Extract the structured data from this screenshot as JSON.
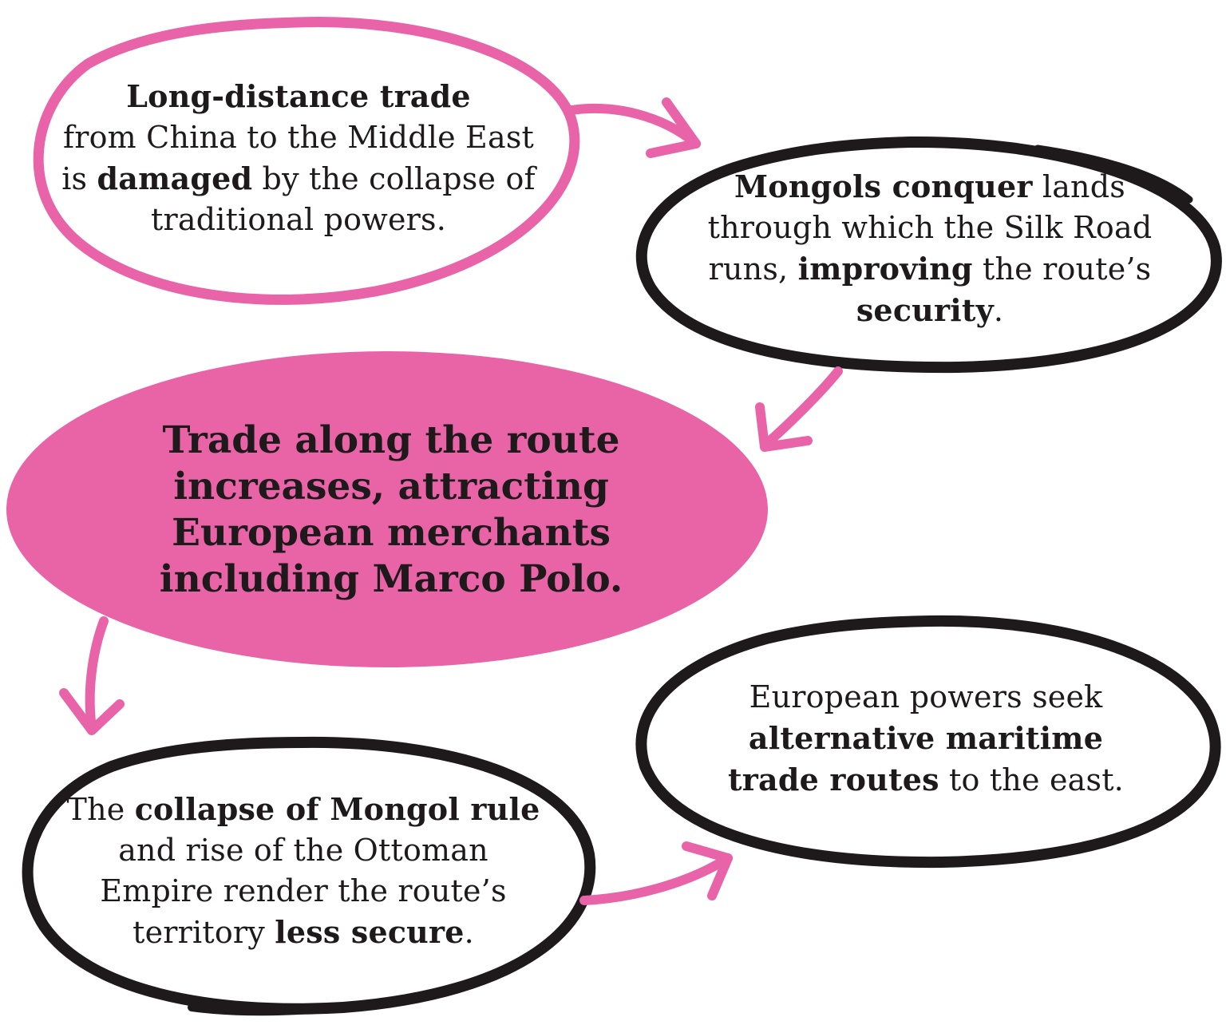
{
  "colors": {
    "pink": "#e863a8",
    "pink_fill": "#e963a7",
    "black_outline": "#1e1a1b",
    "text": "#1e1a1b",
    "background": "#ffffff"
  },
  "nodes": {
    "node1": {
      "bold1": "Long-distance trade",
      "text1": "from China to the Middle East is ",
      "bold2": "damaged",
      "text2": " by the collapse of traditional powers."
    },
    "node2": {
      "bold1": "Mongols conquer",
      "text1": " lands through which the Silk Road runs, ",
      "bold2": "improving",
      "text2": " the route’s ",
      "bold3": "security",
      "text3": "."
    },
    "central": {
      "text": "Trade along the route increases, attracting European merchants including Marco Polo."
    },
    "node4": {
      "text1": "The ",
      "bold1": "collapse of Mongol rule",
      "text2": " and rise of the Ottoman Empire render the route’s territory ",
      "bold2": "less secure",
      "text3": "."
    },
    "node5": {
      "text1": "European powers seek ",
      "bold1": "alternative maritime trade routes",
      "text2": " to the east."
    }
  },
  "arrows": [
    {
      "from": "node1",
      "to": "node2",
      "color": "pink"
    },
    {
      "from": "node2",
      "to": "central",
      "color": "pink"
    },
    {
      "from": "central",
      "to": "node4",
      "color": "pink"
    },
    {
      "from": "node4",
      "to": "node5",
      "color": "pink"
    }
  ]
}
